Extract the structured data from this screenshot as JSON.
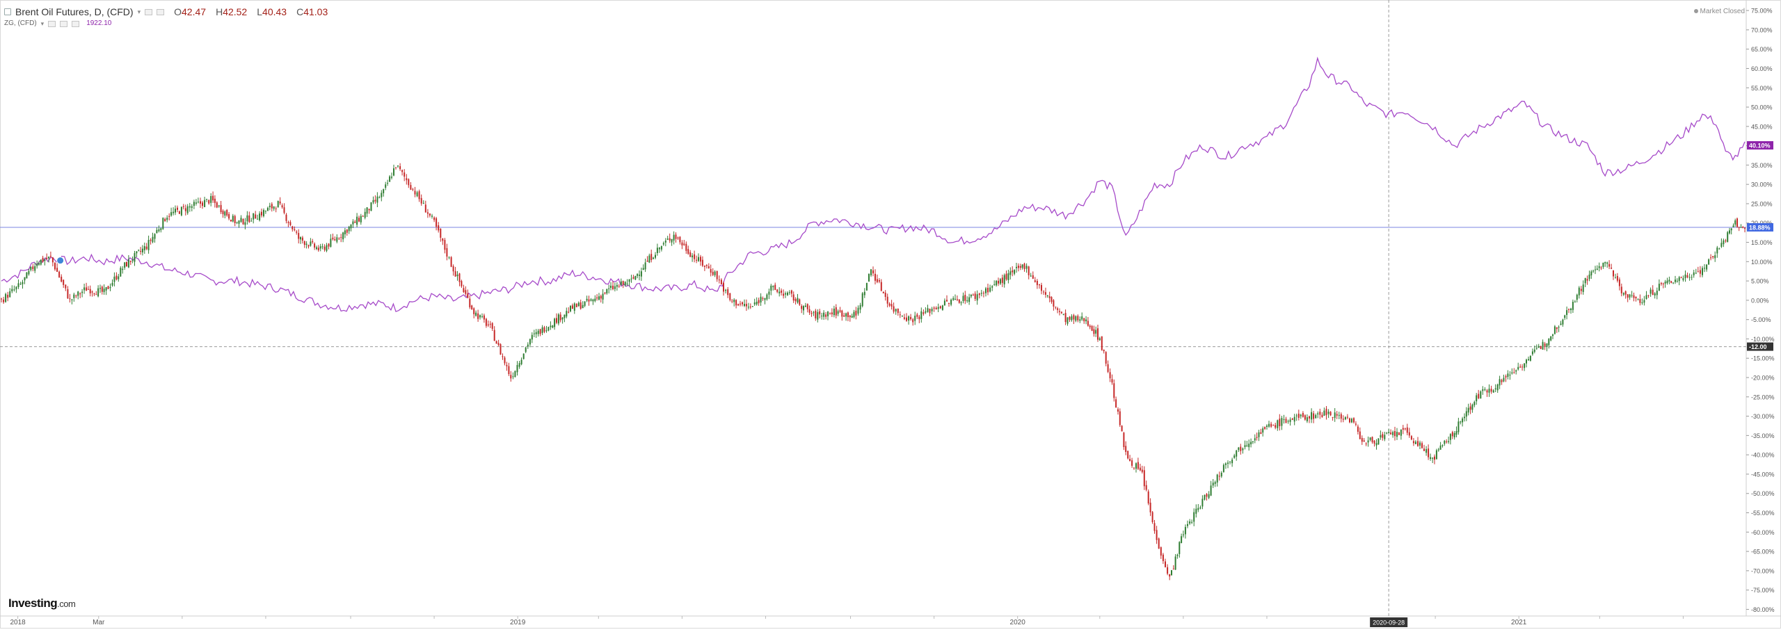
{
  "header": {
    "symbol_title": "Brent Oil Futures, D, (CFD)",
    "ohlc": [
      {
        "label": "O",
        "value": "42.47"
      },
      {
        "label": "H",
        "value": "42.52"
      },
      {
        "label": "L",
        "value": "40.43"
      },
      {
        "label": "C",
        "value": "41.03"
      }
    ],
    "compare_symbol": "ZG, (CFD)",
    "compare_value": "1922.10",
    "market_status": "Market Closed"
  },
  "logo": {
    "main": "Investing",
    "suffix": ".com"
  },
  "colors": {
    "up": "#26a69a",
    "up_candle": "#2f7d32",
    "down": "#c62828",
    "compare_line": "#a64ac9",
    "hline": "#7b85e0",
    "label_blue": "#4169e1",
    "label_purple": "#8e24aa",
    "label_dark": "#333333"
  },
  "chart_data": {
    "type": "line",
    "title": "",
    "y_axis": {
      "unit": "percent",
      "ylim": [
        -81,
        77
      ],
      "ticks": [
        75,
        70,
        65,
        60,
        55,
        50,
        45,
        40,
        35,
        30,
        25,
        20,
        15,
        10,
        5,
        0,
        -5,
        -10,
        -15,
        -20,
        -25,
        -30,
        -35,
        -40,
        -45,
        -50,
        -55,
        -60,
        -65,
        -70,
        -75,
        -80
      ],
      "tick_format": "{v}.00%",
      "position": "right"
    },
    "x_axis": {
      "range": [
        "2017-12-20",
        "2021-06-15"
      ],
      "labels": [
        {
          "date": "2018-01-01",
          "text": "2018"
        },
        {
          "date": "2018-03-01",
          "text": "Mar"
        },
        {
          "date": "2019-01-01",
          "text": "2019"
        },
        {
          "date": "2020-01-01",
          "text": "2020"
        },
        {
          "date": "2021-01-01",
          "text": "2021"
        }
      ],
      "minor_ticks": [
        "2018-05-01",
        "2018-07-01",
        "2018-09-01",
        "2018-11-01",
        "2019-03-01",
        "2019-05-01",
        "2019-07-01",
        "2019-09-01",
        "2019-11-01",
        "2020-03-01",
        "2020-05-01",
        "2020-07-01",
        "2020-11-01",
        "2021-03-01",
        "2021-05-01"
      ]
    },
    "crosshair": {
      "date": "2020-09-28",
      "label": "2020-09-28",
      "value": -12.0,
      "value_label": "-12.00"
    },
    "horizontal_line": {
      "value": 18.88,
      "label": "18.88%"
    },
    "last_value_labels": [
      {
        "series": "compare",
        "value": 40.1,
        "label": "40.10%"
      }
    ],
    "series": [
      {
        "name": "Brent Oil Futures, D, (CFD)",
        "kind": "candlestick",
        "points": [
          [
            "2017-12-20",
            0
          ],
          [
            "2018-01-03",
            4
          ],
          [
            "2018-01-15",
            10
          ],
          [
            "2018-01-25",
            11
          ],
          [
            "2018-02-08",
            0
          ],
          [
            "2018-02-20",
            3
          ],
          [
            "2018-03-05",
            2
          ],
          [
            "2018-03-20",
            9
          ],
          [
            "2018-04-05",
            14
          ],
          [
            "2018-04-20",
            22
          ],
          [
            "2018-05-05",
            24
          ],
          [
            "2018-05-22",
            26
          ],
          [
            "2018-06-10",
            20
          ],
          [
            "2018-06-25",
            22
          ],
          [
            "2018-07-10",
            25
          ],
          [
            "2018-07-25",
            16
          ],
          [
            "2018-08-10",
            13
          ],
          [
            "2018-08-25",
            17
          ],
          [
            "2018-09-10",
            22
          ],
          [
            "2018-09-25",
            28
          ],
          [
            "2018-10-04",
            35
          ],
          [
            "2018-10-18",
            28
          ],
          [
            "2018-11-01",
            20
          ],
          [
            "2018-11-15",
            8
          ],
          [
            "2018-11-30",
            -3
          ],
          [
            "2018-12-12",
            -7
          ],
          [
            "2018-12-27",
            -20
          ],
          [
            "2019-01-10",
            -10
          ],
          [
            "2019-01-25",
            -6
          ],
          [
            "2019-02-10",
            -2
          ],
          [
            "2019-02-25",
            0
          ],
          [
            "2019-03-10",
            3
          ],
          [
            "2019-03-25",
            5
          ],
          [
            "2019-04-10",
            12
          ],
          [
            "2019-04-25",
            17
          ],
          [
            "2019-05-10",
            11
          ],
          [
            "2019-05-25",
            7
          ],
          [
            "2019-06-05",
            0
          ],
          [
            "2019-06-20",
            -2
          ],
          [
            "2019-07-05",
            3
          ],
          [
            "2019-07-20",
            1
          ],
          [
            "2019-08-05",
            -4
          ],
          [
            "2019-08-20",
            -3
          ],
          [
            "2019-09-05",
            -4
          ],
          [
            "2019-09-16",
            8
          ],
          [
            "2019-10-01",
            -2
          ],
          [
            "2019-10-15",
            -5
          ],
          [
            "2019-11-01",
            -2
          ],
          [
            "2019-11-15",
            0
          ],
          [
            "2019-12-01",
            1
          ],
          [
            "2019-12-15",
            4
          ],
          [
            "2020-01-06",
            9
          ],
          [
            "2020-01-20",
            2
          ],
          [
            "2020-02-05",
            -5
          ],
          [
            "2020-02-20",
            -5
          ],
          [
            "2020-03-01",
            -10
          ],
          [
            "2020-03-10",
            -22
          ],
          [
            "2020-03-20",
            -40
          ],
          [
            "2020-04-01",
            -45
          ],
          [
            "2020-04-10",
            -60
          ],
          [
            "2020-04-21",
            -72
          ],
          [
            "2020-05-01",
            -60
          ],
          [
            "2020-05-15",
            -52
          ],
          [
            "2020-06-01",
            -42
          ],
          [
            "2020-06-15",
            -37
          ],
          [
            "2020-07-01",
            -33
          ],
          [
            "2020-07-15",
            -31
          ],
          [
            "2020-08-01",
            -30
          ],
          [
            "2020-08-15",
            -29
          ],
          [
            "2020-09-01",
            -31
          ],
          [
            "2020-09-10",
            -37
          ],
          [
            "2020-09-28",
            -35
          ],
          [
            "2020-10-10",
            -34
          ],
          [
            "2020-10-30",
            -41
          ],
          [
            "2020-11-15",
            -34
          ],
          [
            "2020-12-01",
            -25
          ],
          [
            "2020-12-15",
            -22
          ],
          [
            "2021-01-05",
            -16
          ],
          [
            "2021-01-20",
            -11
          ],
          [
            "2021-02-05",
            -3
          ],
          [
            "2021-02-20",
            6
          ],
          [
            "2021-03-05",
            10
          ],
          [
            "2021-03-20",
            1
          ],
          [
            "2021-04-01",
            0
          ],
          [
            "2021-04-15",
            4
          ],
          [
            "2021-05-01",
            6
          ],
          [
            "2021-05-15",
            8
          ],
          [
            "2021-06-01",
            16
          ],
          [
            "2021-06-08",
            20
          ],
          [
            "2021-06-15",
            18
          ]
        ]
      },
      {
        "name": "ZG, (CFD)",
        "kind": "line",
        "points": [
          [
            "2017-12-20",
            5
          ],
          [
            "2018-01-03",
            7
          ],
          [
            "2018-01-15",
            10
          ],
          [
            "2018-01-25",
            11
          ],
          [
            "2018-02-08",
            10
          ],
          [
            "2018-02-20",
            11
          ],
          [
            "2018-03-05",
            10
          ],
          [
            "2018-03-20",
            11
          ],
          [
            "2018-04-05",
            10
          ],
          [
            "2018-04-20",
            8
          ],
          [
            "2018-05-05",
            7
          ],
          [
            "2018-05-22",
            5
          ],
          [
            "2018-06-10",
            5
          ],
          [
            "2018-06-25",
            4
          ],
          [
            "2018-07-10",
            3
          ],
          [
            "2018-07-25",
            1
          ],
          [
            "2018-08-10",
            -1
          ],
          [
            "2018-08-25",
            -2
          ],
          [
            "2018-09-10",
            -1
          ],
          [
            "2018-09-25",
            -1
          ],
          [
            "2018-10-04",
            -2
          ],
          [
            "2018-10-18",
            0
          ],
          [
            "2018-11-01",
            1
          ],
          [
            "2018-11-15",
            0
          ],
          [
            "2018-11-30",
            1
          ],
          [
            "2018-12-12",
            2
          ],
          [
            "2018-12-27",
            3
          ],
          [
            "2019-01-10",
            5
          ],
          [
            "2019-01-25",
            5
          ],
          [
            "2019-02-10",
            7
          ],
          [
            "2019-02-25",
            6
          ],
          [
            "2019-03-10",
            5
          ],
          [
            "2019-03-25",
            4
          ],
          [
            "2019-04-10",
            3
          ],
          [
            "2019-04-25",
            3
          ],
          [
            "2019-05-10",
            4
          ],
          [
            "2019-05-25",
            2
          ],
          [
            "2019-06-05",
            7
          ],
          [
            "2019-06-20",
            12
          ],
          [
            "2019-07-05",
            13
          ],
          [
            "2019-07-20",
            15
          ],
          [
            "2019-08-05",
            20
          ],
          [
            "2019-08-20",
            21
          ],
          [
            "2019-09-05",
            20
          ],
          [
            "2019-09-16",
            19
          ],
          [
            "2019-10-01",
            18
          ],
          [
            "2019-10-15",
            19
          ],
          [
            "2019-11-01",
            18
          ],
          [
            "2019-11-15",
            15
          ],
          [
            "2019-12-01",
            16
          ],
          [
            "2019-12-15",
            18
          ],
          [
            "2020-01-06",
            24
          ],
          [
            "2020-01-20",
            24
          ],
          [
            "2020-02-05",
            22
          ],
          [
            "2020-02-20",
            26
          ],
          [
            "2020-03-01",
            31
          ],
          [
            "2020-03-10",
            29
          ],
          [
            "2020-03-20",
            16
          ],
          [
            "2020-04-01",
            24
          ],
          [
            "2020-04-10",
            30
          ],
          [
            "2020-04-21",
            30
          ],
          [
            "2020-05-01",
            36
          ],
          [
            "2020-05-15",
            40
          ],
          [
            "2020-06-01",
            37
          ],
          [
            "2020-06-15",
            40
          ],
          [
            "2020-07-01",
            42
          ],
          [
            "2020-07-15",
            46
          ],
          [
            "2020-08-01",
            56
          ],
          [
            "2020-08-07",
            62
          ],
          [
            "2020-08-15",
            58
          ],
          [
            "2020-09-01",
            55
          ],
          [
            "2020-09-10",
            51
          ],
          [
            "2020-09-28",
            48
          ],
          [
            "2020-10-10",
            49
          ],
          [
            "2020-10-30",
            45
          ],
          [
            "2020-11-15",
            40
          ],
          [
            "2020-12-01",
            44
          ],
          [
            "2020-12-15",
            47
          ],
          [
            "2021-01-05",
            51
          ],
          [
            "2021-01-20",
            45
          ],
          [
            "2021-02-05",
            42
          ],
          [
            "2021-02-20",
            40
          ],
          [
            "2021-03-05",
            33
          ],
          [
            "2021-03-20",
            34
          ],
          [
            "2021-04-01",
            36
          ],
          [
            "2021-04-15",
            39
          ],
          [
            "2021-05-01",
            43
          ],
          [
            "2021-05-15",
            48
          ],
          [
            "2021-05-25",
            46
          ],
          [
            "2021-06-01",
            38
          ],
          [
            "2021-06-08",
            37
          ],
          [
            "2021-06-15",
            40
          ]
        ]
      }
    ]
  }
}
